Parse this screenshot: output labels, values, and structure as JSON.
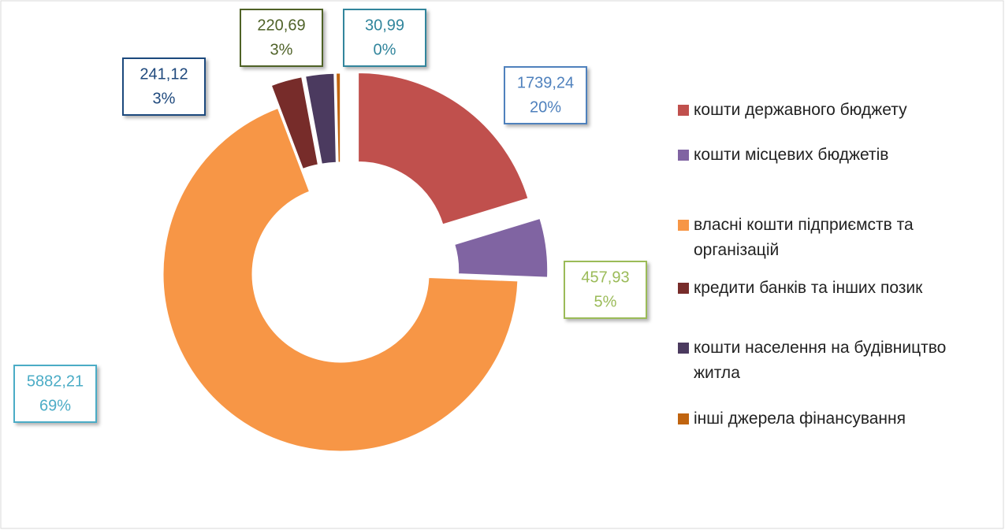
{
  "chart_data": {
    "type": "donut",
    "categories": [
      "кошти державного бюджету",
      "кошти місцевих бюджетів",
      "власні кошти підприємств та організацій",
      "кредити банків та інших позик",
      "кошти населення на будівництво житла",
      "інші джерела фінансування"
    ],
    "values": [
      1739.24,
      457.93,
      5882.21,
      241.12,
      220.69,
      30.99
    ],
    "value_labels": [
      "1739,24",
      "457,93",
      "5882,21",
      "241,12",
      "220,69",
      "30,99"
    ],
    "percent_labels": [
      "20%",
      "5%",
      "69%",
      "3%",
      "3%",
      "0%"
    ],
    "colors": [
      "#c0504d",
      "#8064a2",
      "#f79646",
      "#772c2a",
      "#4b3a5f",
      "#c0640f"
    ],
    "label_colors": [
      "#4f81bd",
      "#9bbb59",
      "#4bacc6",
      "#1f497d",
      "#4f6228",
      "#31859c"
    ],
    "legend": "right"
  }
}
